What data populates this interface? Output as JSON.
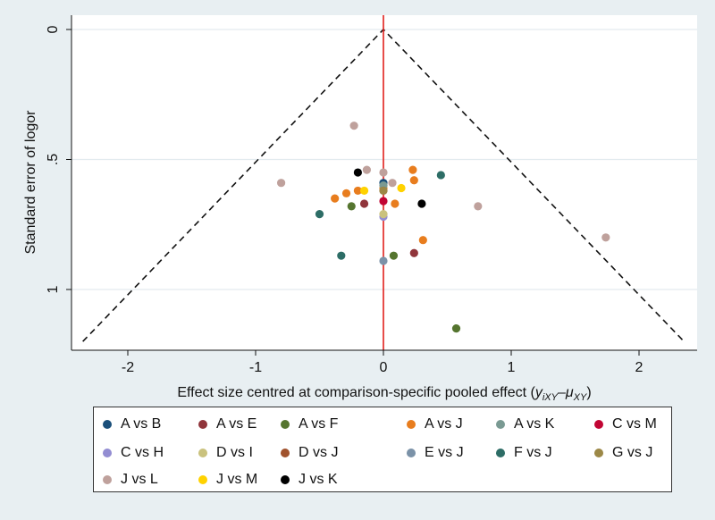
{
  "chart_data": {
    "type": "scatter",
    "title": "",
    "xlabel": "Effect size centred at comparison-specific pooled effect (",
    "xlabel_math": "y",
    "xlabel_sub1": "iXY",
    "xlabel_mid": "–μ",
    "xlabel_sub2": "XY",
    "xlabel_end": ")",
    "ylabel": "Standard error of logor",
    "xlim": [
      -2.4,
      2.4
    ],
    "ylim": [
      0,
      1.2
    ],
    "y_reversed": true,
    "xticks": [
      -2,
      -1,
      0,
      1,
      2
    ],
    "xtick_labels": [
      "-2",
      "-1",
      "0",
      "1",
      "2"
    ],
    "yticks": [
      0,
      0.5,
      1
    ],
    "ytick_labels": [
      "0",
      ".5",
      "1"
    ],
    "reference_line_x": 0,
    "funnel_lower_y": 1.2,
    "series": [
      {
        "name": "A vs B",
        "color": "#1a4f7a",
        "points": [
          [
            0.0,
            0.59
          ]
        ]
      },
      {
        "name": "A vs E",
        "color": "#90353b",
        "points": [
          [
            -0.15,
            0.67
          ],
          [
            0.24,
            0.86
          ]
        ]
      },
      {
        "name": "A vs F",
        "color": "#55752f",
        "points": [
          [
            -0.25,
            0.68
          ],
          [
            0.08,
            0.87
          ],
          [
            0.57,
            1.15
          ]
        ]
      },
      {
        "name": "A vs J",
        "color": "#e87d1e",
        "points": [
          [
            0.23,
            0.54
          ],
          [
            0.24,
            0.58
          ],
          [
            -0.2,
            0.62
          ],
          [
            -0.29,
            0.63
          ],
          [
            -0.38,
            0.65
          ],
          [
            0.0,
            0.61
          ],
          [
            0.09,
            0.67
          ],
          [
            0.31,
            0.81
          ]
        ]
      },
      {
        "name": "A vs K",
        "color": "#7a9a93",
        "points": [
          [
            0.0,
            0.6
          ]
        ]
      },
      {
        "name": "C vs M",
        "color": "#c10534",
        "points": [
          [
            0.0,
            0.66
          ]
        ]
      },
      {
        "name": "C vs H",
        "color": "#938dd2",
        "points": [
          [
            0.0,
            0.72
          ]
        ]
      },
      {
        "name": "D vs I",
        "color": "#cac27e",
        "points": [
          [
            0.0,
            0.71
          ]
        ]
      },
      {
        "name": "D vs J",
        "color": "#a0522d",
        "points": [
          [
            0.0,
            0.62
          ]
        ]
      },
      {
        "name": "E vs J",
        "color": "#7b92a8",
        "points": [
          [
            0.0,
            0.89
          ]
        ]
      },
      {
        "name": "F vs J",
        "color": "#2d6d66",
        "points": [
          [
            0.45,
            0.56
          ],
          [
            -0.5,
            0.71
          ],
          [
            -0.33,
            0.87
          ]
        ]
      },
      {
        "name": "G vs J",
        "color": "#9c8847",
        "points": [
          [
            0.0,
            0.62
          ]
        ]
      },
      {
        "name": "J vs L",
        "color": "#bfa19c",
        "points": [
          [
            -0.23,
            0.37
          ],
          [
            -0.13,
            0.54
          ],
          [
            0.0,
            0.55
          ],
          [
            0.07,
            0.59
          ],
          [
            -0.8,
            0.59
          ],
          [
            0.74,
            0.68
          ],
          [
            1.74,
            0.8
          ]
        ]
      },
      {
        "name": "J vs M",
        "color": "#ffd200",
        "points": [
          [
            -0.15,
            0.62
          ],
          [
            0.14,
            0.61
          ]
        ]
      },
      {
        "name": "J vs K",
        "color": "#000000",
        "points": [
          [
            -0.2,
            0.55
          ],
          [
            0.3,
            0.67
          ]
        ]
      }
    ]
  }
}
